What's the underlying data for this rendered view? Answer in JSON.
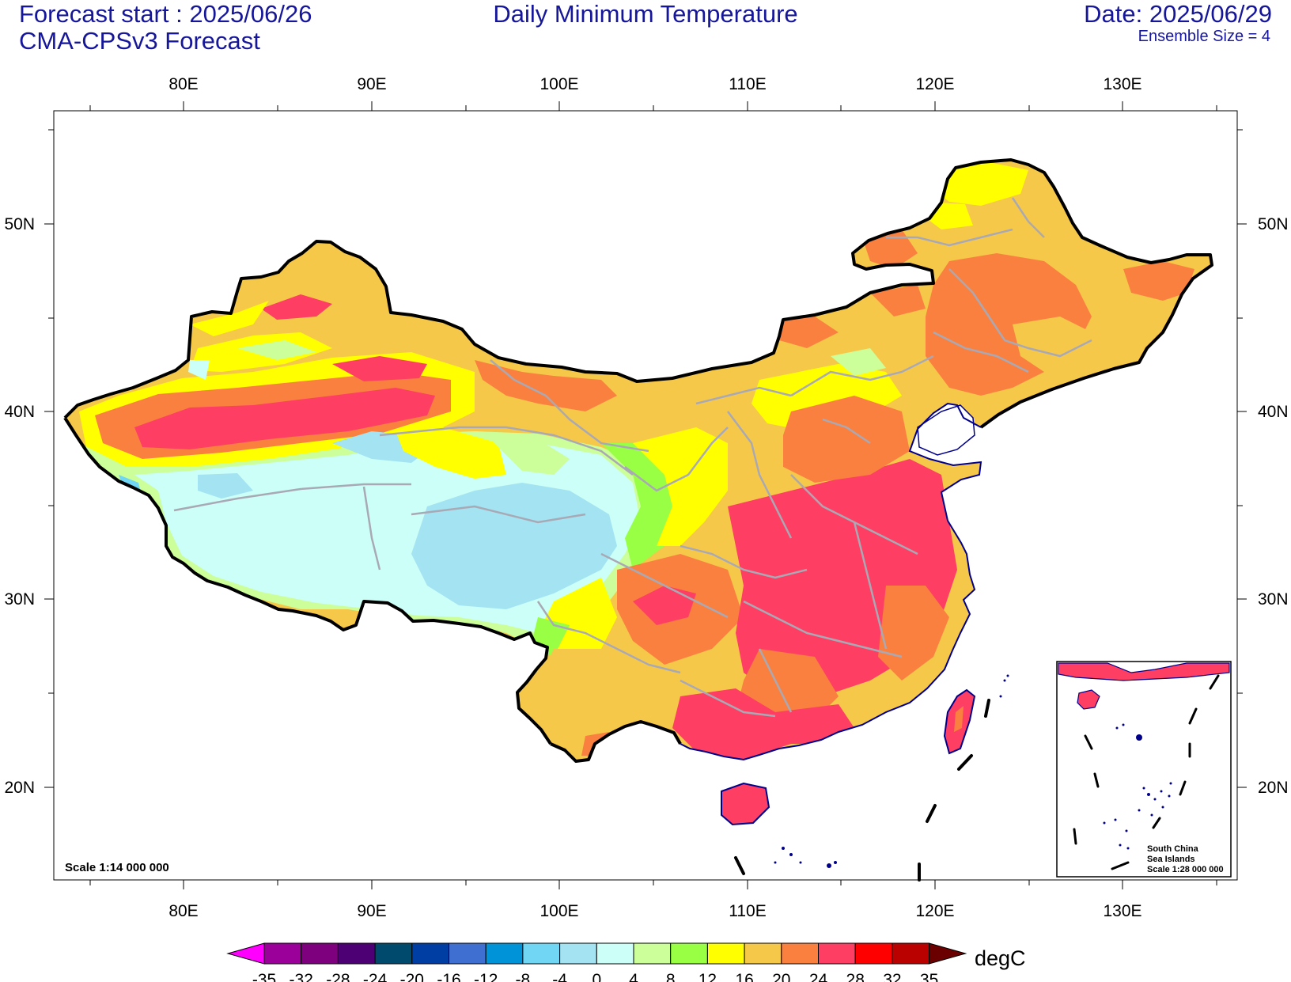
{
  "header": {
    "forecast_start": "Forecast start : 2025/06/26",
    "model": "CMA-CPSv3 Forecast",
    "title": "Daily Minimum Temperature",
    "date": "Date: 2025/06/29",
    "ensemble": "Ensemble Size = 4"
  },
  "map": {
    "lon_ticks": [
      "80E",
      "90E",
      "100E",
      "110E",
      "120E",
      "130E"
    ],
    "lat_ticks": [
      "50N",
      "40N",
      "30N",
      "20N"
    ],
    "scale_text": "Scale 1:14 000 000",
    "inset": {
      "line1": "South China",
      "line2": "Sea Islands",
      "line3": "Scale 1:28 000 000"
    }
  },
  "colorbar": {
    "unit": "degC",
    "levels": [
      "-35",
      "-32",
      "-28",
      "-24",
      "-20",
      "-16",
      "-12",
      "-8",
      "-4",
      "0",
      "4",
      "8",
      "12",
      "16",
      "20",
      "24",
      "28",
      "32",
      "35"
    ],
    "colors": [
      "#ff00ff",
      "#9b009b",
      "#7e007e",
      "#4c0073",
      "#004b6d",
      "#003ea3",
      "#3f6fd0",
      "#0093d8",
      "#71d6f4",
      "#a3e3f2",
      "#ccfff7",
      "#ccff99",
      "#99ff44",
      "#ffff00",
      "#f6c84a",
      "#fa8040",
      "#fe3e63",
      "#ff0000",
      "#bb0000",
      "#6a0000"
    ]
  }
}
